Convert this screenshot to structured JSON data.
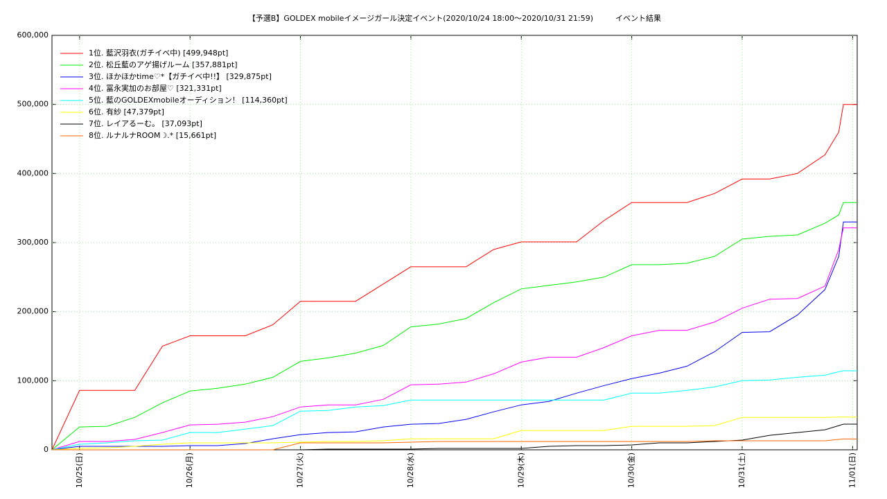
{
  "chart_data": {
    "type": "line",
    "title": "【予選B】GOLDEX mobileイメージガール決定イベント(2020/10/24 18:00〜2020/10/31 21:59)",
    "subtitle": "イベント結果",
    "x": [
      "10/24 18:00",
      "10/25 00:00",
      "10/25 06:00",
      "10/25 12:00",
      "10/25 18:00",
      "10/26 00:00",
      "10/26 06:00",
      "10/26 12:00",
      "10/26 18:00",
      "10/27 00:00",
      "10/27 06:00",
      "10/27 12:00",
      "10/27 18:00",
      "10/28 00:00",
      "10/28 06:00",
      "10/28 12:00",
      "10/28 18:00",
      "10/29 00:00",
      "10/29 06:00",
      "10/29 12:00",
      "10/29 18:00",
      "10/30 00:00",
      "10/30 06:00",
      "10/30 12:00",
      "10/30 18:00",
      "10/31 00:00",
      "10/31 06:00",
      "10/31 12:00",
      "10/31 18:00",
      "10/31 21:00",
      "10/31 22:00",
      "11/01 01:00"
    ],
    "xlim": [
      "10/24 18:00",
      "11/01 01:00"
    ],
    "xticks": [
      {
        "value": "10/25 00:00",
        "label": "10/25(日)"
      },
      {
        "value": "10/26 00:00",
        "label": "10/26(月)"
      },
      {
        "value": "10/27 00:00",
        "label": "10/27(火)"
      },
      {
        "value": "10/28 00:00",
        "label": "10/28(水)"
      },
      {
        "value": "10/29 00:00",
        "label": "10/29(木)"
      },
      {
        "value": "10/30 00:00",
        "label": "10/30(金)"
      },
      {
        "value": "10/31 00:00",
        "label": "10/31(土)"
      },
      {
        "value": "11/01 00:00",
        "label": "11/01(日)"
      }
    ],
    "ylim": [
      0,
      600000
    ],
    "yticks": [
      0,
      {
        "value": 100000,
        "label": "100,000"
      },
      {
        "value": 200000,
        "label": "200,000"
      },
      {
        "value": 300000,
        "label": "300,000"
      },
      {
        "value": 400000,
        "label": "400,000"
      },
      {
        "value": 500000,
        "label": "500,000"
      },
      {
        "value": 600000,
        "label": "600,000"
      }
    ],
    "grid": true,
    "legend": "top-left",
    "series": [
      {
        "name": "1位. 藍沢羽衣(ガチイベ中) [499,948pt]",
        "color": "#ff0000",
        "values": [
          0,
          86000,
          86000,
          86000,
          150000,
          165000,
          165000,
          165000,
          181000,
          215000,
          215000,
          215000,
          240000,
          265000,
          265000,
          265000,
          290000,
          301000,
          301000,
          301000,
          332000,
          358000,
          358000,
          358000,
          371000,
          392000,
          392000,
          400000,
          427000,
          460000,
          499948,
          499948
        ]
      },
      {
        "name": "2位. 松丘藍のアゲ揚げルーム [357,881pt]",
        "color": "#00ee00",
        "values": [
          0,
          33000,
          34000,
          47000,
          68000,
          85000,
          89000,
          95000,
          105000,
          128000,
          133000,
          140000,
          151000,
          178000,
          182000,
          190000,
          213000,
          233000,
          238000,
          243000,
          250000,
          268000,
          268000,
          270000,
          280000,
          305000,
          309000,
          311000,
          328000,
          340000,
          357881,
          357881
        ]
      },
      {
        "name": "3位. ほかほかtime♡*【ガチイベ中!!】 [329,875pt]",
        "color": "#0000ee",
        "values": [
          0,
          5000,
          5000,
          5000,
          5000,
          6000,
          6000,
          9000,
          16000,
          22000,
          25000,
          26000,
          33000,
          37000,
          38000,
          44000,
          55000,
          65000,
          70000,
          82000,
          93000,
          103000,
          111000,
          121000,
          142000,
          170000,
          171000,
          195000,
          232000,
          280000,
          329875,
          329875
        ]
      },
      {
        "name": "4位. 冨永実加のお部屋♡ [321,331pt]",
        "color": "#ff00ff",
        "values": [
          0,
          12000,
          12000,
          15000,
          25000,
          36000,
          37000,
          40000,
          48000,
          62000,
          65000,
          65000,
          73000,
          94000,
          95000,
          98000,
          110000,
          127000,
          134000,
          134000,
          148000,
          165000,
          173000,
          173000,
          185000,
          205000,
          218000,
          219000,
          237000,
          290000,
          321331,
          321331
        ]
      },
      {
        "name": "5位. 藍のGOLDEXmobileオーディション！ [114,360pt]",
        "color": "#00ffff",
        "values": [
          0,
          8000,
          10000,
          13000,
          14000,
          25000,
          25000,
          30000,
          35000,
          56000,
          57000,
          62000,
          64000,
          72000,
          72000,
          72000,
          72000,
          72000,
          72000,
          72000,
          72000,
          82000,
          82000,
          86000,
          91000,
          100000,
          101000,
          105000,
          108000,
          113000,
          114360,
          114360
        ]
      },
      {
        "name": "6位. 有紗 [47,379pt]",
        "color": "#ffff00",
        "values": [
          0,
          2000,
          3000,
          5000,
          8000,
          10000,
          10000,
          10000,
          10000,
          11000,
          12000,
          12000,
          13000,
          16000,
          16000,
          16000,
          16000,
          28000,
          28000,
          28000,
          28000,
          34000,
          34000,
          34000,
          35000,
          47000,
          47000,
          47000,
          47000,
          47379,
          47379,
          47379
        ]
      },
      {
        "name": "7位. レイアるーむ。 [37,093pt]",
        "color": "#000000",
        "values": [
          0,
          0,
          0,
          0,
          0,
          0,
          0,
          0,
          0,
          0,
          1000,
          1000,
          1000,
          1000,
          2000,
          2000,
          2000,
          2000,
          5000,
          6000,
          6000,
          7000,
          10000,
          10000,
          12000,
          14000,
          21000,
          25000,
          29000,
          35000,
          37093,
          37093
        ]
      },
      {
        "name": "8位. ルナルナROOM☽.* [15,661pt]",
        "color": "#ff6600",
        "values": [
          0,
          0,
          0,
          0,
          0,
          0,
          0,
          0,
          0,
          10000,
          10000,
          10000,
          10000,
          11000,
          12000,
          12000,
          12000,
          12000,
          12000,
          12000,
          12000,
          12000,
          12000,
          12000,
          13000,
          13000,
          13000,
          13000,
          13000,
          15000,
          15661,
          15661
        ]
      }
    ]
  }
}
